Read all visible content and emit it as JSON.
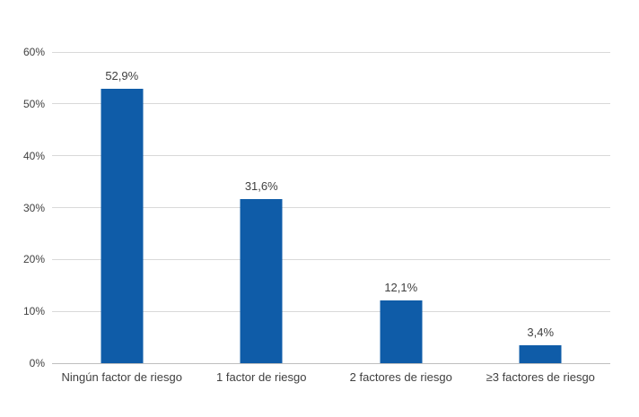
{
  "chart_data": {
    "type": "bar",
    "title": "",
    "xlabel": "",
    "ylabel": "",
    "categories": [
      "Ningún factor de riesgo",
      "1 factor de riesgo",
      "2 factores de riesgo",
      "≥3 factores de riesgo"
    ],
    "values": [
      52.9,
      31.6,
      12.1,
      3.4
    ],
    "value_labels": [
      "52,9%",
      "31,6%",
      "12,1%",
      "3,4%"
    ],
    "ylim": [
      0,
      60
    ],
    "ytick_step": 10,
    "ytick_labels": [
      "0%",
      "10%",
      "20%",
      "30%",
      "40%",
      "50%",
      "60%"
    ],
    "grid": "horizontal-only",
    "legend": "none",
    "colors": {
      "bar": "#0f5ca8",
      "gridline": "#d9d9d9",
      "axis_line": "#bfbfbf",
      "text": "#404040",
      "background": "#ffffff"
    }
  }
}
